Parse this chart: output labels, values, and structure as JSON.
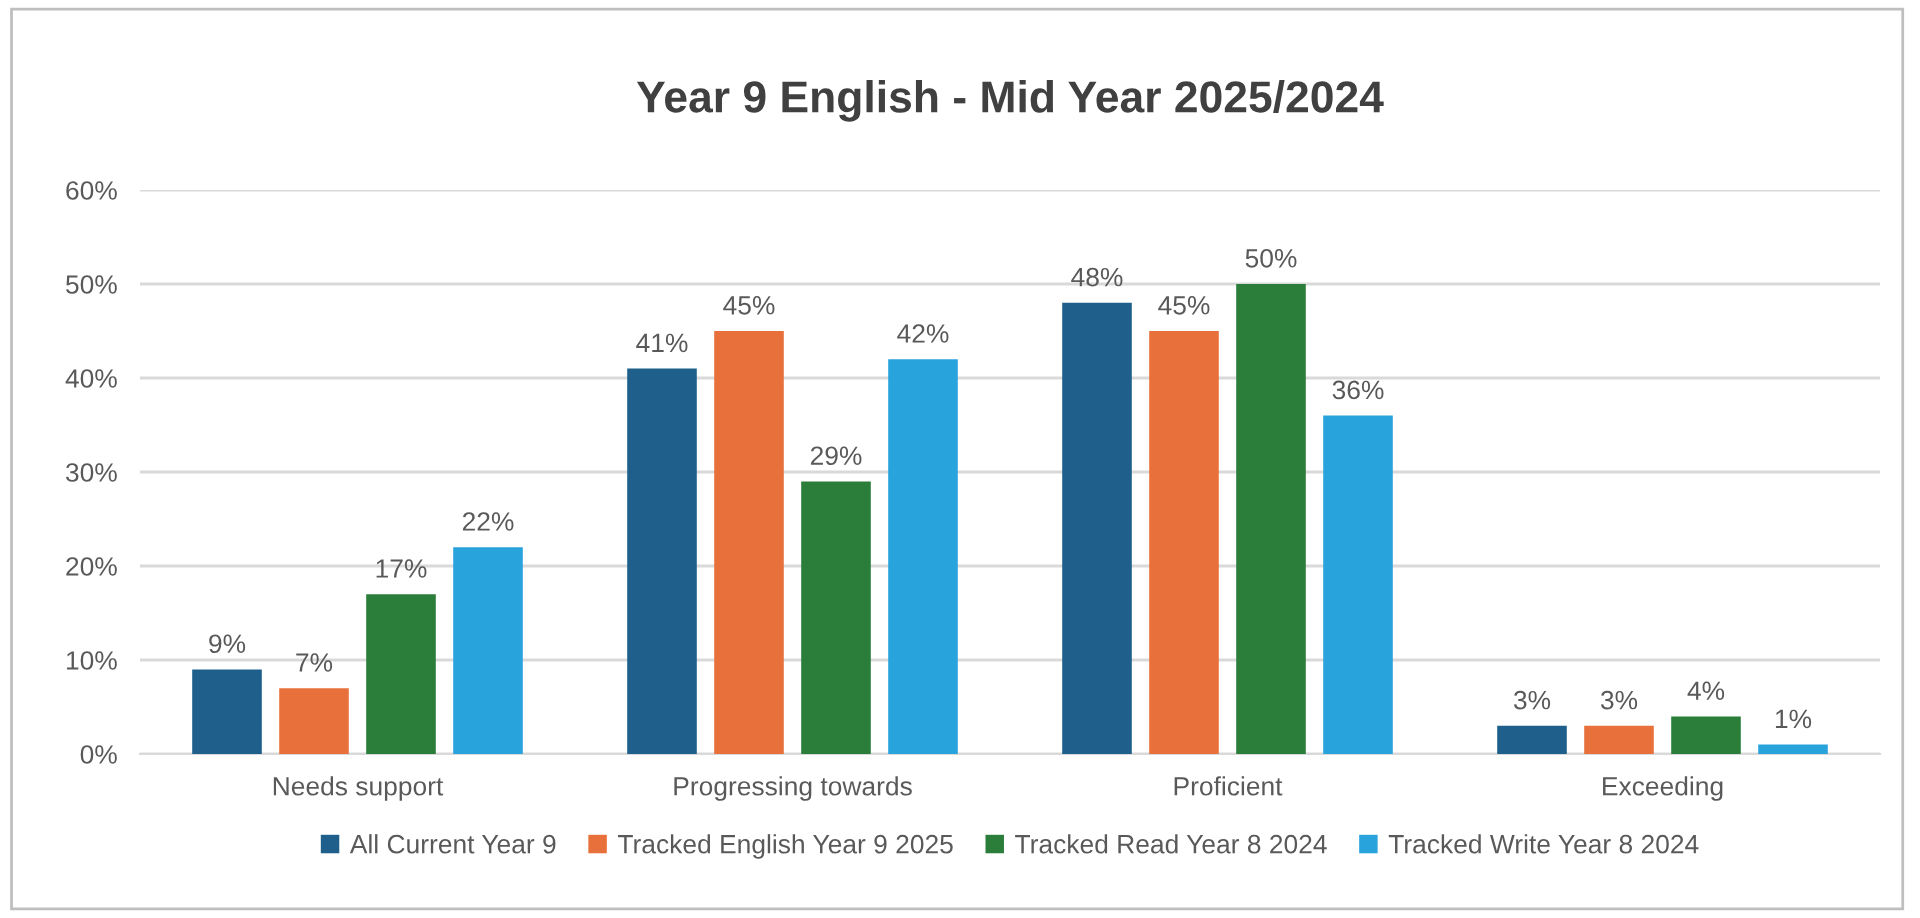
{
  "chart_data": {
    "type": "bar",
    "title": "Year 9 English - Mid Year 2025/2024",
    "categories": [
      "Needs support",
      "Progressing towards",
      "Proficient",
      "Exceeding"
    ],
    "series": [
      {
        "name": "All Current Year 9",
        "color": "#1f5f8b",
        "values": [
          9,
          41,
          48,
          3
        ],
        "value_labels": [
          "9%",
          "41%",
          "48%",
          "3%"
        ]
      },
      {
        "name": "Tracked English Year 9 2025",
        "color": "#e8703a",
        "values": [
          7,
          45,
          45,
          3
        ],
        "value_labels": [
          "7%",
          "45%",
          "45%",
          "3%"
        ]
      },
      {
        "name": "Tracked Read Year 8 2024",
        "color": "#2b7d3a",
        "values": [
          17,
          29,
          50,
          4
        ],
        "value_labels": [
          "17%",
          "29%",
          "50%",
          "4%"
        ]
      },
      {
        "name": "Tracked Write Year 8 2024",
        "color": "#29a3dc",
        "values": [
          22,
          42,
          36,
          1
        ],
        "value_labels": [
          "22%",
          "42%",
          "36%",
          "1%"
        ]
      }
    ],
    "ylim": [
      0,
      60
    ],
    "yticks": [
      {
        "value": 0,
        "label": "0%"
      },
      {
        "value": 10,
        "label": "10%"
      },
      {
        "value": 20,
        "label": "20%"
      },
      {
        "value": 30,
        "label": "30%"
      },
      {
        "value": 40,
        "label": "40%"
      },
      {
        "value": 50,
        "label": "50%"
      },
      {
        "value": 60,
        "label": "60%"
      }
    ],
    "grid": "y",
    "legend": "bottom"
  }
}
